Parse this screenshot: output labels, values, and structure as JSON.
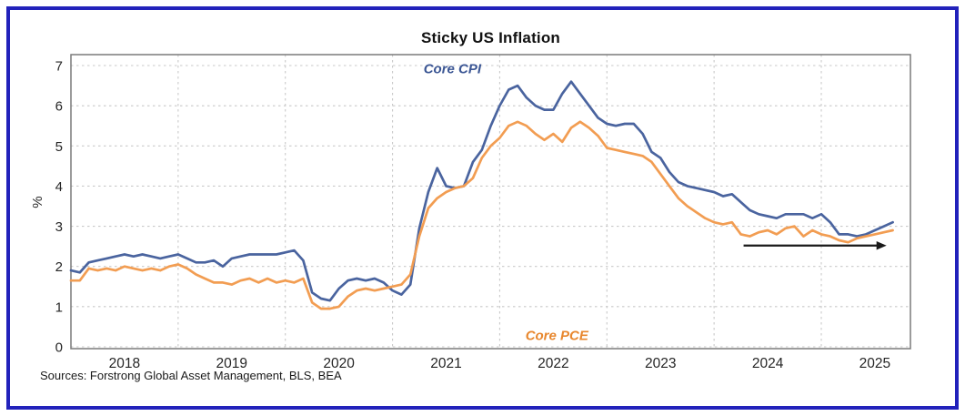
{
  "frame": {
    "border_color": "#2222bb",
    "background": "#ffffff"
  },
  "source_note": "Sources: Forstrong Global Asset Management, BLS, BEA",
  "chart_data": {
    "type": "line",
    "title": "Sticky US Inflation",
    "xlabel": "",
    "ylabel": "%",
    "ylim": [
      0,
      7.27
    ],
    "y_ticks": [
      "0",
      "1",
      "2",
      "3",
      "4",
      "5",
      "6",
      "7"
    ],
    "x_tick_labels": [
      "2018",
      "2019",
      "2020",
      "2021",
      "2022",
      "2023",
      "2024",
      "2025"
    ],
    "x_frequency": "monthly",
    "x_range": "2018-01 to 2025-09",
    "grid": "dashed, horizontal at each %, vertical at each January",
    "legend_position": "inline labels on chart",
    "units": "percent, year-over-year",
    "series": [
      {
        "name": "Core CPI",
        "color": "#4a649f",
        "label_color": "#3b5694",
        "label_anchor": {
          "month_index": 42.7,
          "value": 6.9
        },
        "values": [
          1.9,
          1.85,
          2.1,
          2.15,
          2.2,
          2.25,
          2.3,
          2.25,
          2.3,
          2.25,
          2.2,
          2.25,
          2.3,
          2.2,
          2.1,
          2.1,
          2.15,
          2.0,
          2.2,
          2.25,
          2.3,
          2.3,
          2.3,
          2.3,
          2.35,
          2.4,
          2.15,
          1.35,
          1.2,
          1.15,
          1.45,
          1.65,
          1.7,
          1.65,
          1.7,
          1.6,
          1.4,
          1.3,
          1.55,
          2.95,
          3.85,
          4.45,
          4.0,
          3.95,
          4.0,
          4.6,
          4.9,
          5.5,
          6.0,
          6.4,
          6.5,
          6.2,
          6.0,
          5.9,
          5.9,
          6.3,
          6.6,
          6.3,
          6.0,
          5.7,
          5.55,
          5.5,
          5.55,
          5.55,
          5.3,
          4.85,
          4.7,
          4.35,
          4.1,
          4.0,
          3.95,
          3.9,
          3.85,
          3.75,
          3.8,
          3.6,
          3.4,
          3.3,
          3.25,
          3.2,
          3.3,
          3.3,
          3.3,
          3.2,
          3.3,
          3.1,
          2.8,
          2.8,
          2.75,
          2.8,
          2.9,
          3.0,
          3.1
        ]
      },
      {
        "name": "Core PCE",
        "color": "#f29d52",
        "label_color": "#e8872e",
        "label_anchor": {
          "month_index": 54.4,
          "value": 0.28
        },
        "values": [
          1.65,
          1.65,
          1.95,
          1.9,
          1.95,
          1.9,
          2.0,
          1.95,
          1.9,
          1.95,
          1.9,
          2.0,
          2.05,
          1.95,
          1.8,
          1.7,
          1.6,
          1.6,
          1.55,
          1.65,
          1.7,
          1.6,
          1.7,
          1.6,
          1.65,
          1.6,
          1.7,
          1.1,
          0.95,
          0.95,
          1.0,
          1.25,
          1.4,
          1.45,
          1.4,
          1.45,
          1.5,
          1.55,
          1.8,
          2.75,
          3.45,
          3.7,
          3.85,
          3.95,
          4.0,
          4.2,
          4.7,
          5.0,
          5.2,
          5.5,
          5.6,
          5.5,
          5.3,
          5.15,
          5.3,
          5.1,
          5.45,
          5.6,
          5.45,
          5.25,
          4.95,
          4.9,
          4.85,
          4.8,
          4.75,
          4.6,
          4.3,
          4.0,
          3.7,
          3.5,
          3.35,
          3.2,
          3.1,
          3.05,
          3.1,
          2.8,
          2.75,
          2.85,
          2.9,
          2.8,
          2.95,
          3.0,
          2.75,
          2.9,
          2.8,
          2.75,
          2.65,
          2.6,
          2.7,
          2.75,
          2.8,
          2.85,
          2.9
        ]
      }
    ],
    "annotations": {
      "arrow": {
        "meaning": "flat/sticky inflation trend pointing right",
        "from_month_index": 75.3,
        "to_month_index": 91.3,
        "value": 2.52,
        "color": "#1a1a1a"
      }
    },
    "style": {
      "plot_border_color": "#7a7a7a",
      "gridline_color": "#c9c9c9",
      "tick_label_color": "#262626",
      "line_width": 2.7
    }
  }
}
